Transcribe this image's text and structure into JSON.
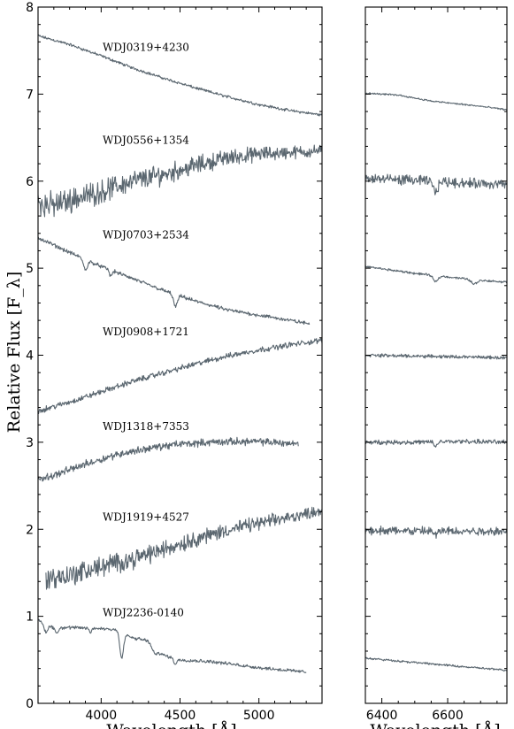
{
  "chart_data": {
    "type": "line",
    "ylabel": "Relative Flux [F_λ]",
    "xlabel": "Wavelength [Å]",
    "ylim": [
      0,
      8
    ],
    "yticks": [
      0,
      1,
      2,
      3,
      4,
      5,
      6,
      7,
      8
    ],
    "panels": [
      {
        "xlim": [
          3600,
          5400
        ],
        "xticks": [
          4000,
          4500,
          5000
        ]
      },
      {
        "xlim": [
          6350,
          6780
        ],
        "xticks": [
          6400,
          6600
        ]
      }
    ],
    "series_color": "#5b6770",
    "series": [
      {
        "name": "WDJ0319+4230",
        "blue": [
          [
            3600,
            7.67
          ],
          [
            3800,
            7.57
          ],
          [
            4000,
            7.44
          ],
          [
            4200,
            7.3
          ],
          [
            4400,
            7.18
          ],
          [
            4600,
            7.07
          ],
          [
            4800,
            6.97
          ],
          [
            5000,
            6.88
          ],
          [
            5200,
            6.81
          ],
          [
            5400,
            6.76
          ]
        ],
        "red": [
          [
            6350,
            7.01
          ],
          [
            6450,
            6.99
          ],
          [
            6550,
            6.92
          ],
          [
            6600,
            6.9
          ],
          [
            6700,
            6.86
          ],
          [
            6780,
            6.82
          ]
        ],
        "noise": 0.015,
        "features": []
      },
      {
        "name": "WDJ0556+1354",
        "blue": [
          [
            3600,
            5.75
          ],
          [
            3700,
            5.72
          ],
          [
            3800,
            5.78
          ],
          [
            4000,
            5.88
          ],
          [
            4200,
            6.0
          ],
          [
            4400,
            6.08
          ],
          [
            4600,
            6.18
          ],
          [
            4800,
            6.27
          ],
          [
            5000,
            6.31
          ],
          [
            5200,
            6.33
          ],
          [
            5400,
            6.35
          ]
        ],
        "red": [
          [
            6350,
            6.03
          ],
          [
            6500,
            6.01
          ],
          [
            6650,
            5.98
          ],
          [
            6780,
            5.96
          ]
        ],
        "noise": 0.09,
        "features": [
          [
            6563,
            -0.12,
            7
          ]
        ]
      },
      {
        "name": "WDJ0703+2534",
        "blue": [
          [
            3600,
            5.35
          ],
          [
            3800,
            5.18
          ],
          [
            4000,
            5.02
          ],
          [
            4200,
            4.88
          ],
          [
            4400,
            4.74
          ],
          [
            4600,
            4.62
          ],
          [
            4800,
            4.52
          ],
          [
            5000,
            4.46
          ],
          [
            5200,
            4.4
          ],
          [
            5320,
            4.36
          ]
        ],
        "red": [
          [
            6350,
            5.02
          ],
          [
            6500,
            4.94
          ],
          [
            6600,
            4.9
          ],
          [
            6700,
            4.86
          ],
          [
            6780,
            4.84
          ]
        ],
        "noise": 0.02,
        "features": [
          [
            3900,
            -0.12,
            12
          ],
          [
            4060,
            -0.07,
            8
          ],
          [
            4471,
            -0.14,
            12
          ],
          [
            6563,
            -0.07,
            7
          ],
          [
            6680,
            -0.05,
            8
          ]
        ]
      },
      {
        "name": "WDJ0908+1721",
        "blue": [
          [
            3600,
            3.36
          ],
          [
            3800,
            3.46
          ],
          [
            4000,
            3.58
          ],
          [
            4200,
            3.7
          ],
          [
            4400,
            3.8
          ],
          [
            4600,
            3.9
          ],
          [
            4800,
            3.99
          ],
          [
            5000,
            4.06
          ],
          [
            5200,
            4.12
          ],
          [
            5400,
            4.17
          ]
        ],
        "red": [
          [
            6350,
            4.0
          ],
          [
            6500,
            3.99
          ],
          [
            6650,
            3.98
          ],
          [
            6780,
            3.97
          ]
        ],
        "noise": 0.03,
        "features": []
      },
      {
        "name": "WDJ1318+7353",
        "blue": [
          [
            3600,
            2.58
          ],
          [
            3700,
            2.62
          ],
          [
            3900,
            2.75
          ],
          [
            4100,
            2.86
          ],
          [
            4300,
            2.93
          ],
          [
            4500,
            2.98
          ],
          [
            4700,
            3.0
          ],
          [
            4900,
            3.01
          ],
          [
            5100,
            3.0
          ],
          [
            5250,
            2.98
          ]
        ],
        "red": [
          [
            6350,
            3.0
          ],
          [
            6500,
            3.0
          ],
          [
            6650,
            3.01
          ],
          [
            6780,
            3.0
          ]
        ],
        "noise": 0.04,
        "features": [
          [
            6563,
            -0.05,
            5
          ]
        ]
      },
      {
        "name": "WDJ1919+4527",
        "blue": [
          [
            3650,
            1.43
          ],
          [
            3800,
            1.47
          ],
          [
            4000,
            1.57
          ],
          [
            4200,
            1.66
          ],
          [
            4400,
            1.77
          ],
          [
            4600,
            1.89
          ],
          [
            4800,
            1.99
          ],
          [
            5000,
            2.07
          ],
          [
            5200,
            2.14
          ],
          [
            5400,
            2.22
          ]
        ],
        "red": [
          [
            6350,
            1.99
          ],
          [
            6500,
            1.98
          ],
          [
            6650,
            1.98
          ],
          [
            6780,
            1.98
          ]
        ],
        "noise": 0.08,
        "features": [
          [
            6563,
            -0.05,
            6
          ]
        ]
      },
      {
        "name": "WDJ2236-0140",
        "blue": [
          [
            3600,
            0.95
          ],
          [
            3700,
            0.87
          ],
          [
            3800,
            0.87
          ],
          [
            4000,
            0.86
          ],
          [
            4100,
            0.85
          ],
          [
            4200,
            0.75
          ],
          [
            4300,
            0.72
          ],
          [
            4400,
            0.55
          ],
          [
            4500,
            0.5
          ],
          [
            4700,
            0.48
          ],
          [
            5000,
            0.41
          ],
          [
            5300,
            0.36
          ]
        ],
        "red": [
          [
            6350,
            0.52
          ],
          [
            6500,
            0.47
          ],
          [
            6650,
            0.42
          ],
          [
            6780,
            0.38
          ]
        ],
        "noise": 0.018,
        "features": [
          [
            3650,
            -0.1,
            10
          ],
          [
            3720,
            -0.06,
            10
          ],
          [
            3933,
            -0.06,
            7
          ],
          [
            4130,
            -0.3,
            12
          ],
          [
            4340,
            -0.08,
            20
          ],
          [
            4471,
            -0.06,
            10
          ]
        ]
      }
    ]
  }
}
